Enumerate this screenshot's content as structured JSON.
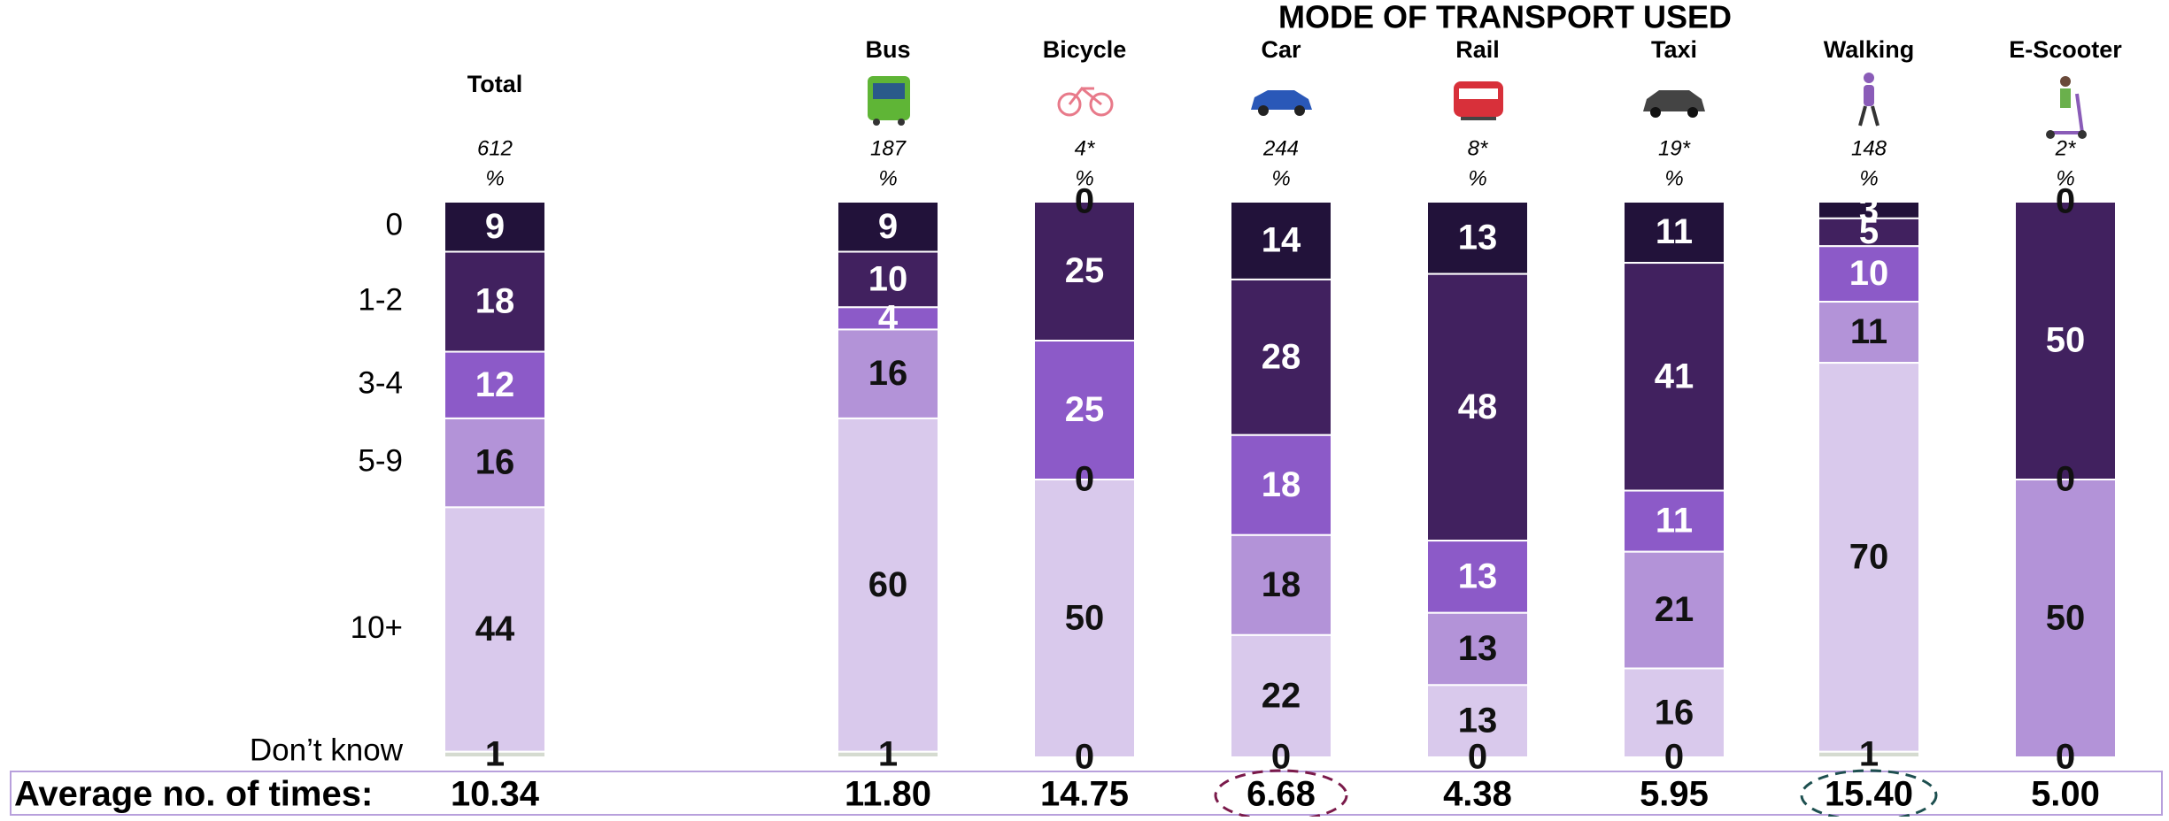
{
  "chart_data": {
    "type": "bar",
    "stacked": true,
    "title": "MODE OF TRANSPORT USED",
    "categories": [
      "Total",
      "Bus",
      "Bicycle",
      "Car",
      "Rail",
      "Taxi",
      "Walking",
      "E-Scooter"
    ],
    "base_labels": [
      "612",
      "187",
      "4*",
      "244",
      "8*",
      "19*",
      "148",
      "2*"
    ],
    "unit_label": "%",
    "ylim": [
      0,
      100
    ],
    "series": [
      {
        "name": "0",
        "color": "#22123a",
        "values": [
          9,
          9,
          0,
          14,
          13,
          11,
          3,
          0
        ]
      },
      {
        "name": "1-2",
        "color": "#41215f",
        "values": [
          18,
          10,
          25,
          28,
          48,
          41,
          5,
          50
        ]
      },
      {
        "name": "3-4",
        "color": "#8c5ac8",
        "values": [
          12,
          4,
          25,
          18,
          13,
          11,
          10,
          0
        ]
      },
      {
        "name": "5-9",
        "color": "#b393d8",
        "values": [
          16,
          16,
          0,
          18,
          13,
          21,
          11,
          50
        ]
      },
      {
        "name": "10+",
        "color": "#d9c9ec",
        "values": [
          44,
          60,
          50,
          22,
          13,
          16,
          70,
          0
        ]
      },
      {
        "name": "Don’t know",
        "color": "#d5dbd0",
        "values": [
          1,
          1,
          0,
          0,
          0,
          0,
          1,
          0
        ]
      }
    ],
    "average_label": "Average no. of times:",
    "averages": {
      "values": [
        10.34,
        11.8,
        14.75,
        6.68,
        4.38,
        5.95,
        15.4,
        5
      ],
      "value_labels": [
        "10.34",
        "11.80",
        "14.75",
        "6.68",
        "4.38",
        "5.95",
        "15.40",
        "5.00"
      ]
    }
  }
}
